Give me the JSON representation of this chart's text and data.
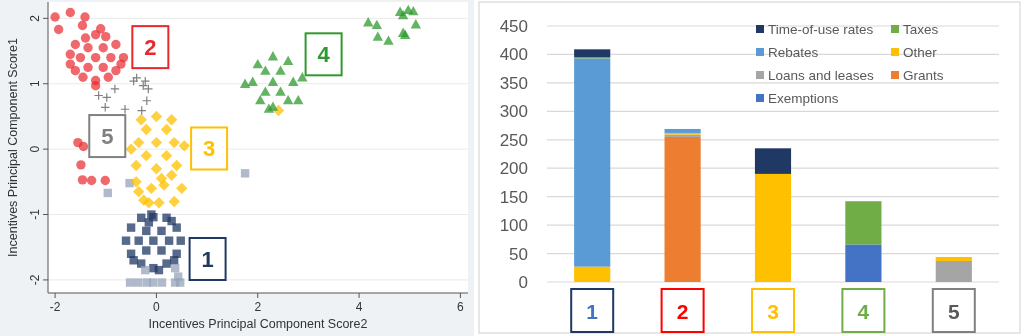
{
  "chart_data": [
    {
      "type": "scatter",
      "xlabel": "Incentives Principal Component Score2",
      "ylabel": "Incentives Principal Component Score1",
      "xlim": [
        -2.14,
        6.15
      ],
      "ylim": [
        -2.2,
        2.25
      ],
      "xticks": [
        -2,
        0,
        2,
        4,
        6
      ],
      "yticks": [
        -2,
        -1,
        0,
        1,
        2
      ],
      "grid": "y",
      "series": [
        {
          "name": "1",
          "color": "#1f3864",
          "marker": "square",
          "x": [
            -0.06,
            -0.35,
            0.25,
            -0.6,
            0.48,
            -0.06,
            -0.3,
            0.2,
            -0.06,
            -0.3,
            0.2,
            -0.5,
            0.4,
            -0.5,
            0.4,
            -0.2,
            0.1,
            -0.2,
            0.1,
            -0.1,
            0.05,
            -0.45,
            0.35,
            -0.15,
            0.3
          ],
          "values": [
            -1.4,
            -1.4,
            -1.4,
            -1.4,
            -1.4,
            -1.04,
            -1.05,
            -1.05,
            -1.82,
            -1.75,
            -1.75,
            -1.2,
            -1.2,
            -1.6,
            -1.6,
            -1.25,
            -1.25,
            -1.55,
            -1.55,
            -1.0,
            -1.85,
            -1.7,
            -1.7,
            -1.12,
            -1.1
          ]
        },
        {
          "color": "#95a3b8",
          "marker": "square",
          "x": [
            1.75,
            -0.53,
            -0.96,
            0.37,
            0.43,
            -0.22,
            -0.52,
            -0.36,
            -0.19,
            -0.06,
            0.11,
            0.37,
            0.47
          ],
          "values": [
            -0.37,
            -0.52,
            -0.67,
            -1.82,
            -1.95,
            -1.85,
            -2.04,
            -2.04,
            -2.04,
            -2.04,
            -2.04,
            -2.04,
            -2.04
          ]
        },
        {
          "name": "2",
          "color": "#e8282d",
          "marker": "circle",
          "x": [
            -1.2,
            -1.5,
            -0.9,
            -1.7,
            -0.65,
            -1.2,
            -1.4,
            -1.0,
            -1.2,
            -1.45,
            -0.95,
            -1.6,
            -0.8,
            -1.6,
            -0.8,
            -1.35,
            -1.05,
            -1.35,
            -1.05,
            -1.2,
            -0.7,
            -1.7,
            -1.1,
            -2.0,
            -1.7,
            -1.41,
            -1.93,
            -1.46,
            -1.55,
            -1.44,
            -1.49,
            -1.46,
            -1.28,
            -1.01
          ],
          "values": [
            1.4,
            1.4,
            1.4,
            1.45,
            1.4,
            1.75,
            1.7,
            1.72,
            1.05,
            1.1,
            1.1,
            1.6,
            1.6,
            1.2,
            1.2,
            1.55,
            1.55,
            1.25,
            1.25,
            0.97,
            1.3,
            1.3,
            1.84,
            2.02,
            2.09,
            2.02,
            1.83,
            1.89,
            0.1,
            0.04,
            -0.24,
            -0.47,
            -0.48,
            -0.48
          ]
        },
        {
          "name": "3",
          "color": "#ffc000",
          "marker": "diamond",
          "x": [
            0.0,
            -0.35,
            0.35,
            -0.5,
            0.55,
            0.0,
            -0.3,
            0.3,
            0.0,
            -0.4,
            0.4,
            -0.2,
            0.2,
            -0.2,
            0.2,
            0.1,
            -0.4,
            0.5,
            -0.1,
            0.3,
            -0.25,
            0.15,
            -0.35,
            -0.15,
            0.05,
            0.35,
            2.41
          ],
          "values": [
            0.1,
            0.1,
            0.1,
            0.0,
            0.05,
            0.5,
            0.45,
            0.45,
            -0.3,
            -0.25,
            -0.25,
            0.3,
            0.3,
            -0.1,
            -0.1,
            -0.45,
            -0.5,
            -0.6,
            -0.6,
            -0.4,
            -0.78,
            -0.55,
            -0.65,
            -0.82,
            -0.82,
            -0.8,
            0.59
          ]
        },
        {
          "name": "4",
          "color": "#2e9a2e",
          "marker": "triangle",
          "x": [
            2.3,
            1.9,
            2.7,
            1.75,
            2.88,
            2.3,
            2.0,
            2.6,
            2.3,
            2.05,
            2.6,
            2.15,
            2.45,
            2.15,
            2.45,
            2.8,
            2.22,
            4.18,
            4.35,
            4.37,
            4.58,
            4.81,
            4.87,
            5.07,
            5.12,
            4.87,
            4.91,
            4.97
          ],
          "values": [
            1.03,
            1.03,
            1.03,
            1.0,
            1.1,
            1.42,
            1.3,
            1.35,
            0.65,
            0.75,
            0.75,
            1.2,
            1.2,
            0.88,
            0.88,
            0.75,
            0.62,
            1.94,
            1.9,
            1.72,
            1.66,
            2.1,
            2.05,
            2.11,
            1.91,
            1.78,
            1.75,
            2.13
          ]
        },
        {
          "name": "5",
          "color": "#808080",
          "marker": "cross",
          "x": [
            -0.39,
            -0.45,
            -0.22,
            -0.82,
            -1.14,
            -0.98,
            -1.01,
            -0.62,
            -0.29,
            -0.19,
            -0.16,
            -0.26
          ],
          "values": [
            1.09,
            1.04,
            1.04,
            0.92,
            0.82,
            0.79,
            0.64,
            0.61,
            0.59,
            0.74,
            0.92,
            0.97
          ]
        }
      ]
    },
    {
      "type": "bar",
      "stacked": true,
      "categories": [
        "1",
        "2",
        "3",
        "4",
        "5"
      ],
      "ylim": [
        0,
        450
      ],
      "yticks": [
        0,
        50,
        100,
        150,
        200,
        250,
        300,
        350,
        400,
        450
      ],
      "grid": "y",
      "legend": "top right",
      "series": [
        {
          "name": "Exemptions",
          "color": "#4472c4",
          "values": [
            null,
            null,
            null,
            66,
            null
          ]
        },
        {
          "name": "Grants",
          "color": "#ed7d31",
          "values": [
            null,
            255,
            null,
            null,
            null
          ]
        },
        {
          "name": "Loans and leases",
          "color": "#a5a5a5",
          "values": [
            null,
            4,
            null,
            null,
            37
          ]
        },
        {
          "name": "Other",
          "color": "#ffc000",
          "values": [
            27,
            3,
            190,
            null,
            7
          ]
        },
        {
          "name": "Rebates",
          "color": "#5b9bd5",
          "values": [
            366,
            7,
            null,
            null,
            null
          ]
        },
        {
          "name": "Taxes",
          "color": "#70ad47",
          "values": [
            2,
            null,
            null,
            76,
            null
          ]
        },
        {
          "name": "Time-of-use rates",
          "color": "#203864",
          "values": [
            14,
            null,
            45,
            null,
            null
          ]
        }
      ]
    }
  ]
}
